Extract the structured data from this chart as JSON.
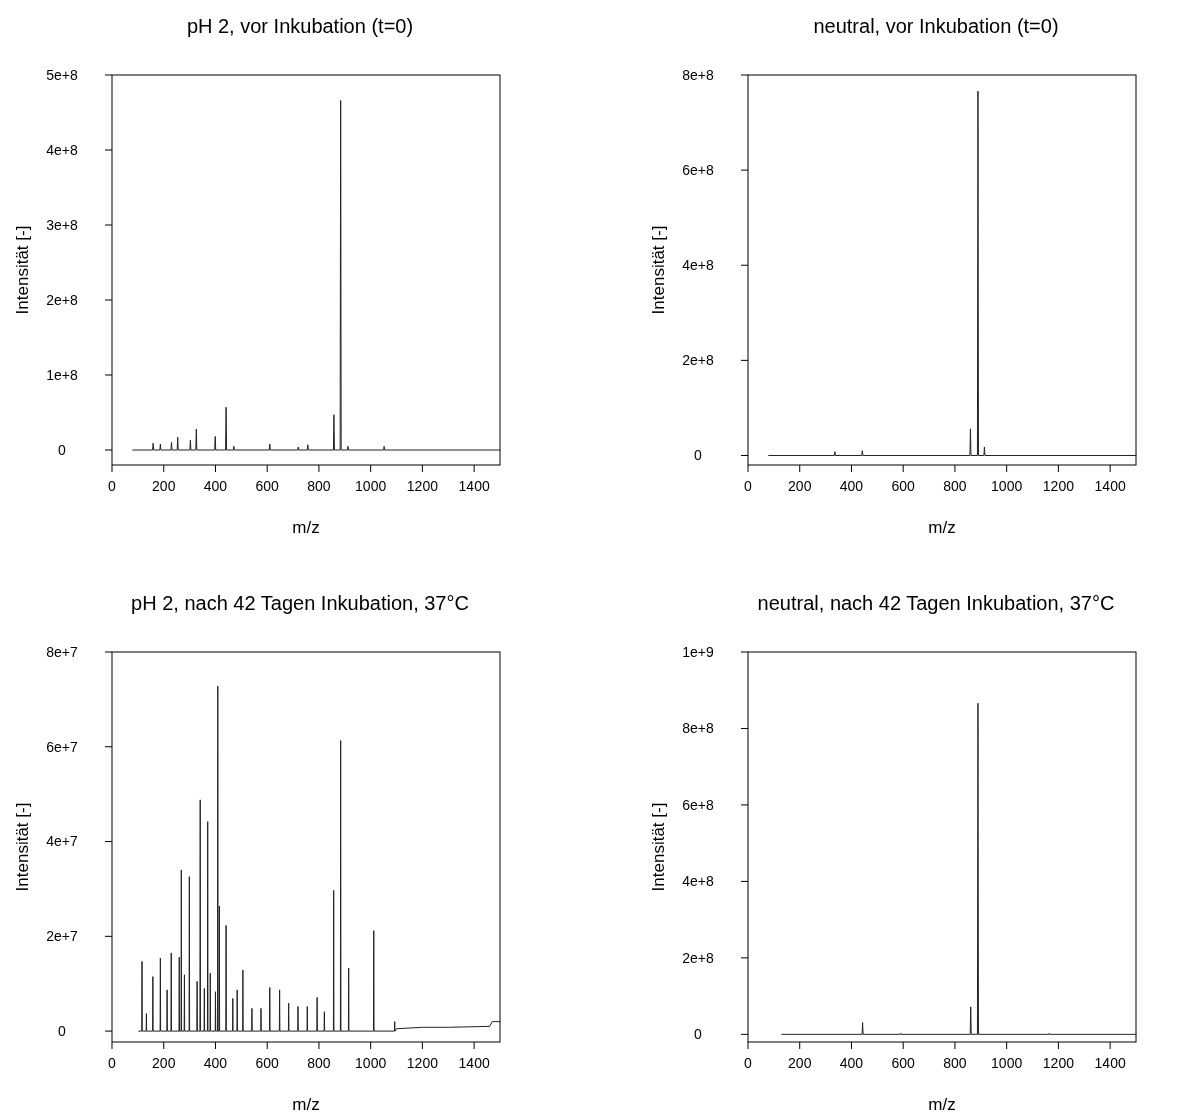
{
  "chart_data": [
    {
      "type": "line",
      "title": "pH 2, vor Inkubation (t=0)",
      "xlabel": "m/z",
      "ylabel": "Intensität [-]",
      "xlim": [
        0,
        1500
      ],
      "xticks": [
        0,
        200,
        400,
        600,
        800,
        1000,
        1200,
        1400
      ],
      "ylim": [
        -20000000.0,
        500000000.0
      ],
      "yticks": [
        {
          "value": 0,
          "label": "0"
        },
        {
          "value": 100000000.0,
          "label": "1e+8"
        },
        {
          "value": 200000000.0,
          "label": "2e+8"
        },
        {
          "value": 300000000.0,
          "label": "3e+8"
        },
        {
          "value": 400000000.0,
          "label": "4e+8"
        },
        {
          "value": 500000000.0,
          "label": "5e+8"
        }
      ],
      "series": [
        {
          "color": "#222222",
          "x": [
            80,
            157,
            159,
            161,
            185,
            187,
            189,
            228,
            230,
            232,
            252,
            254,
            256,
            301,
            303,
            305,
            324,
            326,
            328,
            397,
            399,
            401,
            439,
            441,
            443,
            469,
            471,
            473,
            608,
            610,
            612,
            718,
            720,
            722,
            755,
            757,
            759,
            856,
            858,
            860,
            882,
            884,
            886,
            910,
            912,
            914,
            1050,
            1052,
            1054,
            1500
          ],
          "values": [
            0,
            0,
            9000000.0,
            0,
            0,
            8000000.0,
            0,
            0,
            10000000.0,
            0,
            0,
            17000000.0,
            0,
            0,
            13000000.0,
            0,
            0,
            28000000.0,
            0,
            0,
            18000000.0,
            0,
            0,
            57000000.0,
            0,
            0,
            5000000.0,
            0,
            0,
            8000000.0,
            0,
            0,
            4000000.0,
            0,
            0,
            7000000.0,
            0,
            0,
            47000000.0,
            0,
            0,
            466000000.0,
            0,
            0,
            5000000.0,
            0,
            0,
            5000000.0,
            0,
            0
          ]
        }
      ]
    },
    {
      "type": "line",
      "title": "neutral, vor Inkubation (t=0)",
      "xlabel": "m/z",
      "ylabel": "Intensität [-]",
      "xlim": [
        0,
        1500
      ],
      "xticks": [
        0,
        200,
        400,
        600,
        800,
        1000,
        1200,
        1400
      ],
      "ylim": [
        -20000000.0,
        800000000.0
      ],
      "yticks": [
        {
          "value": 0,
          "label": "0"
        },
        {
          "value": 200000000.0,
          "label": "2e+8"
        },
        {
          "value": 400000000.0,
          "label": "4e+8"
        },
        {
          "value": 600000000.0,
          "label": "6e+8"
        },
        {
          "value": 800000000.0,
          "label": "8e+8"
        }
      ],
      "series": [
        {
          "color": "#222222",
          "x": [
            80,
            334,
            336,
            338,
            440,
            442,
            444,
            858,
            860,
            862,
            887,
            889,
            891,
            912,
            914,
            916,
            1500
          ],
          "values": [
            0,
            0,
            8000000.0,
            0,
            0,
            10000000.0,
            0,
            0,
            56000000.0,
            0,
            0,
            766000000.0,
            0,
            0,
            18000000.0,
            0,
            0
          ]
        }
      ]
    },
    {
      "type": "line",
      "title": "pH 2, nach 42 Tagen Inkubation, 37°C",
      "xlabel": "m/z",
      "ylabel": "Intensität [-]",
      "xlim": [
        0,
        1500
      ],
      "xticks": [
        0,
        200,
        400,
        600,
        800,
        1000,
        1200,
        1400
      ],
      "ylim": [
        -2300000.0,
        80000000.0
      ],
      "yticks": [
        {
          "value": 0,
          "label": "0"
        },
        {
          "value": 20000000.0,
          "label": "2e+7"
        },
        {
          "value": 40000000.0,
          "label": "4e+7"
        },
        {
          "value": 60000000.0,
          "label": "6e+7"
        },
        {
          "value": 80000000.0,
          "label": "8e+7"
        }
      ],
      "series": [
        {
          "color": "#222222",
          "x": [
            103,
            115,
            116,
            117,
            132,
            133,
            134,
            157,
            158,
            159,
            186,
            187,
            188,
            212,
            213,
            214,
            228,
            229,
            230,
            259,
            260,
            261,
            267,
            268,
            269,
            279,
            280,
            281,
            298,
            299,
            300,
            328,
            329,
            330,
            340,
            341,
            342,
            356,
            357,
            358,
            369,
            370,
            371,
            379,
            380,
            381,
            399,
            400,
            401,
            408,
            409,
            410,
            414,
            415,
            416,
            440,
            441,
            442,
            466,
            467,
            468,
            483,
            484,
            485,
            505,
            506,
            507,
            540,
            541,
            542,
            575,
            576,
            577,
            609,
            610,
            611,
            647,
            648,
            649,
            682,
            683,
            684,
            718,
            719,
            720,
            754,
            755,
            756,
            792,
            793,
            794,
            820,
            821,
            822,
            856,
            857,
            858,
            883,
            884,
            885,
            914,
            915,
            916,
            1011,
            1012,
            1013,
            1092,
            1093,
            1094,
            1100,
            1200,
            1300,
            1460,
            1470,
            1500
          ],
          "values": [
            0,
            0,
            14700000.0,
            0,
            0,
            3700000.0,
            0,
            0,
            11500000.0,
            0,
            0,
            15400000.0,
            0,
            0,
            8700000.0,
            0,
            0,
            16500000.0,
            0,
            0,
            15600000.0,
            0,
            0,
            34000000.0,
            0,
            0,
            11900000.0,
            0,
            0,
            32600000.0,
            0,
            0,
            10500000.0,
            0,
            0,
            48800000.0,
            0,
            0,
            9000000.0,
            0,
            0,
            44200000.0,
            0,
            0,
            12200000.0,
            0,
            0,
            8300000.0,
            0,
            0,
            72800000.0,
            0,
            0,
            26400000.0,
            0,
            0,
            22300000.0,
            0,
            0,
            6900000.0,
            0,
            0,
            8700000.0,
            0,
            0,
            12900000.0,
            0,
            0,
            4800000.0,
            0,
            0,
            4800000.0,
            0,
            0,
            9200000.0,
            0,
            0,
            8700000.0,
            0,
            0,
            5900000.0,
            0,
            0,
            5200000.0,
            0,
            0,
            5200000.0,
            0,
            0,
            7100000.0,
            0,
            0,
            4100000.0,
            0,
            0,
            29700000.0,
            0,
            0,
            61300000.0,
            0,
            0,
            13300000.0,
            0,
            0,
            21200000.0,
            0,
            0,
            2000000.0,
            0,
            500000.0,
            800000.0,
            800000.0,
            1000000.0,
            2000000.0,
            2000000.0
          ]
        }
      ]
    },
    {
      "type": "line",
      "title": "neutral, nach 42 Tagen Inkubation, 37°C",
      "xlabel": "m/z",
      "ylabel": "Intensität [-]",
      "xlim": [
        0,
        1500
      ],
      "xticks": [
        0,
        200,
        400,
        600,
        800,
        1000,
        1200,
        1400
      ],
      "ylim": [
        -20000000.0,
        1000000000.0
      ],
      "yticks": [
        {
          "value": 0,
          "label": "0"
        },
        {
          "value": 200000000.0,
          "label": "2e+8"
        },
        {
          "value": 400000000.0,
          "label": "4e+8"
        },
        {
          "value": 600000000.0,
          "label": "6e+8"
        },
        {
          "value": 800000000.0,
          "label": "8e+8"
        },
        {
          "value": 1000000000.0,
          "label": "1e+9"
        }
      ],
      "series": [
        {
          "color": "#222222",
          "x": [
            131,
            441,
            443,
            445,
            588,
            590,
            592,
            859,
            861,
            863,
            887,
            889,
            891,
            1163,
            1165,
            1167,
            1500
          ],
          "values": [
            0,
            0,
            31000000.0,
            0,
            0,
            3000000.0,
            0,
            0,
            72000000.0,
            0,
            0,
            866000000.0,
            0,
            0,
            3000000.0,
            0,
            0
          ]
        }
      ]
    }
  ]
}
